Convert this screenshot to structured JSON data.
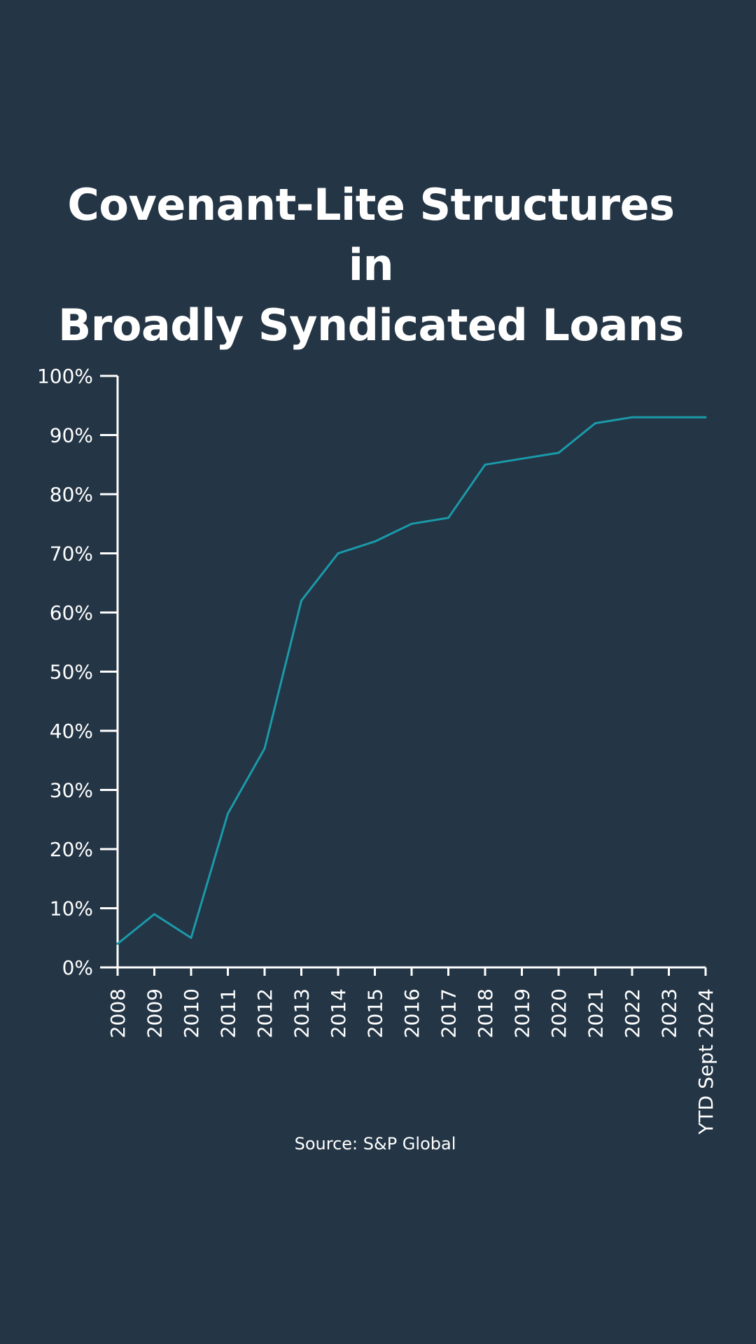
{
  "colors": {
    "background": "#243545",
    "line": "#1a9aaa",
    "axis": "#ffffff",
    "text": "#ffffff"
  },
  "title_lines": [
    "Covenant-Lite Structures in",
    "Broadly Syndicated Loans"
  ],
  "source": "Source: S&P Global",
  "chart_data": {
    "type": "line",
    "title": "Covenant-Lite Structures in Broadly Syndicated Loans",
    "xlabel": "",
    "ylabel": "",
    "ylim": [
      0,
      100
    ],
    "grid": false,
    "y_tick_labels": [
      "0%",
      "10%",
      "20%",
      "30%",
      "40%",
      "50%",
      "60%",
      "70%",
      "80%",
      "90%",
      "100%"
    ],
    "categories": [
      "2008",
      "2009",
      "2010",
      "2011",
      "2012",
      "2013",
      "2014",
      "2015",
      "2016",
      "2017",
      "2018",
      "2019",
      "2020",
      "2021",
      "2022",
      "2023",
      "YTD Sept 2024"
    ],
    "series": [
      {
        "values": [
          4,
          9,
          5,
          26,
          37,
          62,
          70,
          72,
          75,
          76,
          85,
          86,
          87,
          92,
          93,
          93,
          93
        ]
      }
    ]
  }
}
